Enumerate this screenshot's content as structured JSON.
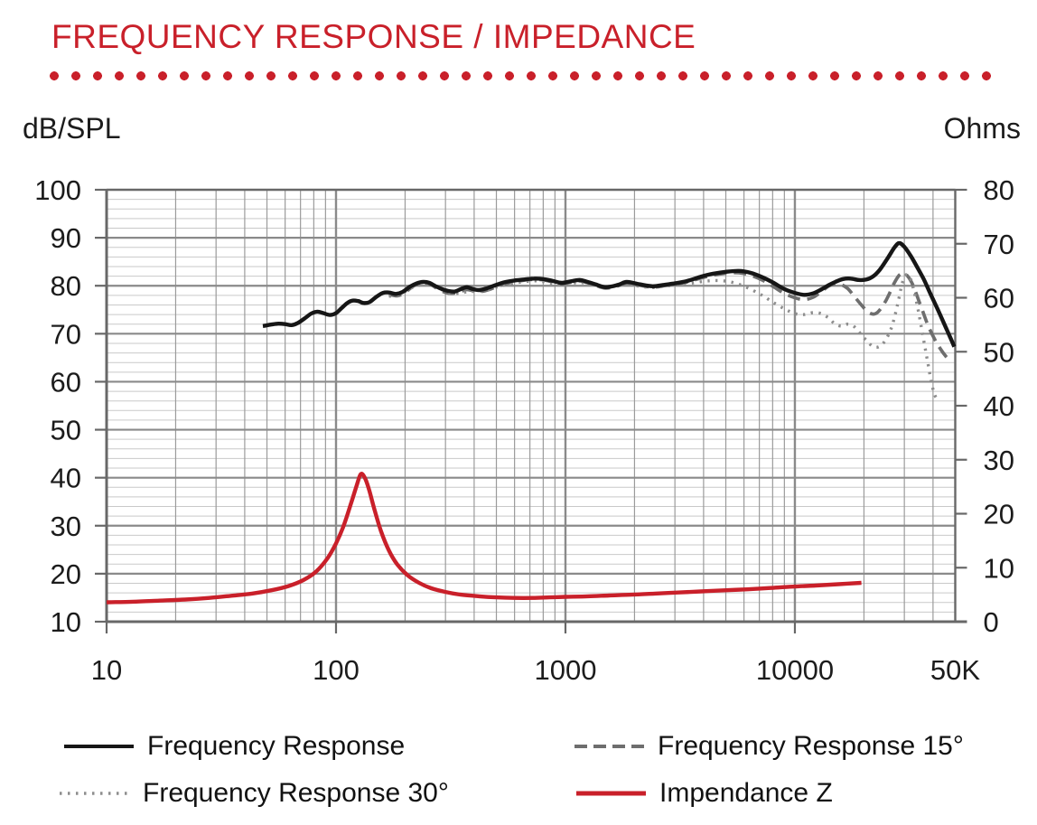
{
  "header": {
    "title": "FREQUENCY RESPONSE / IMPEDANCE"
  },
  "colors": {
    "accent_red": "#C9202A",
    "curve_black": "#161616",
    "curve_gray_dashed": "#6e6e6e",
    "curve_gray_dotted": "#8d8d8d",
    "grid_major": "#8a8a8a",
    "grid_minor": "#c9c9c9",
    "grid_minor_vertical": "#9b9b9b",
    "border": "#686868",
    "text": "#1c1c1c"
  },
  "chart_data": {
    "type": "line",
    "title": "FREQUENCY RESPONSE / IMPEDANCE",
    "grid": "on",
    "legend_position": "bottom",
    "x_axis": {
      "scale": "log",
      "min": 10,
      "max": 50000,
      "tick_values": [
        10,
        100,
        1000,
        10000,
        50000
      ],
      "tick_labels": [
        "10",
        "100",
        "1000",
        "10000",
        "50K"
      ]
    },
    "y_left": {
      "label": "dB/SPL",
      "min": 10,
      "max": 100,
      "step": 10,
      "minor_step": 2,
      "ticks": [
        100,
        90,
        80,
        70,
        60,
        50,
        40,
        30,
        20,
        10
      ]
    },
    "y_right": {
      "label": "Ohms",
      "min": 0,
      "max": 80,
      "step": 10,
      "ticks": [
        80,
        70,
        60,
        50,
        40,
        30,
        20,
        10,
        0
      ]
    },
    "series": [
      {
        "name": "Frequency Response",
        "axis": "left",
        "unit": "dB",
        "line_style": "solid",
        "color_key": "curve_black",
        "points": [
          [
            48,
            71.6
          ],
          [
            52,
            71.9
          ],
          [
            56,
            72.1
          ],
          [
            60,
            72.0
          ],
          [
            64,
            71.8
          ],
          [
            68,
            72.2
          ],
          [
            73,
            73.2
          ],
          [
            78,
            74.2
          ],
          [
            83,
            74.6
          ],
          [
            88,
            74.3
          ],
          [
            94,
            73.9
          ],
          [
            100,
            74.3
          ],
          [
            106,
            75.4
          ],
          [
            112,
            76.4
          ],
          [
            118,
            76.9
          ],
          [
            125,
            76.8
          ],
          [
            132,
            76.4
          ],
          [
            140,
            76.6
          ],
          [
            150,
            77.7
          ],
          [
            160,
            78.5
          ],
          [
            170,
            78.6
          ],
          [
            182,
            78.3
          ],
          [
            195,
            78.7
          ],
          [
            210,
            79.8
          ],
          [
            225,
            80.5
          ],
          [
            240,
            80.8
          ],
          [
            255,
            80.6
          ],
          [
            272,
            79.9
          ],
          [
            290,
            79.3
          ],
          [
            310,
            78.9
          ],
          [
            330,
            78.8
          ],
          [
            350,
            79.3
          ],
          [
            372,
            79.7
          ],
          [
            395,
            79.3
          ],
          [
            420,
            79.1
          ],
          [
            450,
            79.4
          ],
          [
            480,
            79.9
          ],
          [
            515,
            80.4
          ],
          [
            550,
            80.8
          ],
          [
            600,
            81.1
          ],
          [
            660,
            81.3
          ],
          [
            730,
            81.5
          ],
          [
            800,
            81.4
          ],
          [
            880,
            81.0
          ],
          [
            960,
            80.6
          ],
          [
            1050,
            80.9
          ],
          [
            1150,
            81.2
          ],
          [
            1250,
            80.8
          ],
          [
            1350,
            80.3
          ],
          [
            1500,
            79.7
          ],
          [
            1700,
            80.2
          ],
          [
            1850,
            80.8
          ],
          [
            2100,
            80.3
          ],
          [
            2400,
            79.9
          ],
          [
            2700,
            80.2
          ],
          [
            3000,
            80.5
          ],
          [
            3400,
            81.0
          ],
          [
            3900,
            81.9
          ],
          [
            4400,
            82.5
          ],
          [
            5000,
            82.9
          ],
          [
            5700,
            83.1
          ],
          [
            6400,
            82.7
          ],
          [
            7200,
            81.8
          ],
          [
            8000,
            80.7
          ],
          [
            9000,
            79.3
          ],
          [
            10000,
            78.5
          ],
          [
            11000,
            78.1
          ],
          [
            12000,
            78.4
          ],
          [
            13000,
            79.2
          ],
          [
            14000,
            80.1
          ],
          [
            15000,
            80.8
          ],
          [
            16200,
            81.4
          ],
          [
            17500,
            81.5
          ],
          [
            19000,
            81.2
          ],
          [
            20500,
            81.3
          ],
          [
            22000,
            82.0
          ],
          [
            23500,
            83.4
          ],
          [
            25500,
            85.9
          ],
          [
            27200,
            88.0
          ],
          [
            28500,
            88.9
          ],
          [
            30000,
            88.1
          ],
          [
            32000,
            86.2
          ],
          [
            34000,
            84.0
          ],
          [
            36500,
            81.3
          ],
          [
            39000,
            78.3
          ],
          [
            42000,
            75.0
          ],
          [
            45000,
            71.8
          ],
          [
            47500,
            69.3
          ],
          [
            49500,
            67.3
          ]
        ]
      },
      {
        "name": "Frequency Response 15°",
        "axis": "left",
        "unit": "dB",
        "line_style": "dashed",
        "color_key": "curve_gray_dashed",
        "points": [
          [
            170,
            78.2
          ],
          [
            185,
            77.9
          ],
          [
            200,
            78.6
          ],
          [
            215,
            79.8
          ],
          [
            230,
            80.4
          ],
          [
            245,
            80.6
          ],
          [
            262,
            80.1
          ],
          [
            280,
            79.2
          ],
          [
            300,
            78.6
          ],
          [
            320,
            78.4
          ],
          [
            345,
            78.7
          ],
          [
            372,
            79.2
          ],
          [
            400,
            78.9
          ],
          [
            430,
            78.8
          ],
          [
            465,
            79.2
          ],
          [
            500,
            79.8
          ],
          [
            540,
            80.3
          ],
          [
            590,
            80.8
          ],
          [
            650,
            81.1
          ],
          [
            720,
            81.3
          ],
          [
            800,
            81.2
          ],
          [
            880,
            80.8
          ],
          [
            960,
            80.4
          ],
          [
            1050,
            80.7
          ],
          [
            1150,
            81.0
          ],
          [
            1250,
            80.6
          ],
          [
            1350,
            80.1
          ],
          [
            1500,
            79.5
          ],
          [
            1700,
            80.0
          ],
          [
            1850,
            80.6
          ],
          [
            2100,
            80.1
          ],
          [
            2400,
            79.7
          ],
          [
            2700,
            80.0
          ],
          [
            3000,
            80.3
          ],
          [
            3400,
            80.8
          ],
          [
            3900,
            81.6
          ],
          [
            4400,
            82.2
          ],
          [
            5000,
            82.6
          ],
          [
            5700,
            82.7
          ],
          [
            6400,
            82.2
          ],
          [
            7200,
            81.2
          ],
          [
            8000,
            79.9
          ],
          [
            9000,
            78.4
          ],
          [
            10000,
            77.5
          ],
          [
            11000,
            77.1
          ],
          [
            12000,
            77.6
          ],
          [
            13000,
            78.7
          ],
          [
            14000,
            79.9
          ],
          [
            15000,
            80.4
          ],
          [
            16000,
            80.2
          ],
          [
            17000,
            79.4
          ],
          [
            18000,
            78.0
          ],
          [
            19500,
            76.0
          ],
          [
            21000,
            74.4
          ],
          [
            22500,
            74.2
          ],
          [
            24000,
            75.6
          ],
          [
            25500,
            77.8
          ],
          [
            27000,
            80.4
          ],
          [
            28500,
            82.2
          ],
          [
            29800,
            82.6
          ],
          [
            31000,
            82.0
          ],
          [
            32500,
            80.4
          ],
          [
            34000,
            78.0
          ],
          [
            36000,
            74.8
          ],
          [
            38000,
            71.8
          ],
          [
            40500,
            69.0
          ],
          [
            43000,
            66.9
          ],
          [
            45500,
            65.3
          ],
          [
            48000,
            64.2
          ]
        ]
      },
      {
        "name": "Frequency Response 30°",
        "axis": "left",
        "unit": "dB",
        "line_style": "dotted",
        "color_key": "curve_gray_dotted",
        "points": [
          [
            170,
            77.8
          ],
          [
            190,
            78.2
          ],
          [
            210,
            79.4
          ],
          [
            230,
            80.1
          ],
          [
            250,
            80.3
          ],
          [
            270,
            79.8
          ],
          [
            295,
            79.0
          ],
          [
            320,
            78.4
          ],
          [
            350,
            78.5
          ],
          [
            380,
            78.8
          ],
          [
            420,
            78.8
          ],
          [
            460,
            79.2
          ],
          [
            500,
            79.7
          ],
          [
            550,
            80.2
          ],
          [
            610,
            80.6
          ],
          [
            680,
            80.9
          ],
          [
            760,
            81.0
          ],
          [
            850,
            80.6
          ],
          [
            950,
            80.2
          ],
          [
            1050,
            80.4
          ],
          [
            1150,
            80.7
          ],
          [
            1280,
            80.3
          ],
          [
            1450,
            79.8
          ],
          [
            1650,
            79.9
          ],
          [
            1850,
            80.3
          ],
          [
            2100,
            79.9
          ],
          [
            2400,
            79.6
          ],
          [
            2700,
            79.9
          ],
          [
            3100,
            80.2
          ],
          [
            3500,
            80.5
          ],
          [
            4000,
            80.9
          ],
          [
            4500,
            81.1
          ],
          [
            5100,
            80.9
          ],
          [
            5700,
            80.3
          ],
          [
            6400,
            79.3
          ],
          [
            7200,
            78.0
          ],
          [
            8000,
            76.6
          ],
          [
            9000,
            75.2
          ],
          [
            10000,
            74.2
          ],
          [
            11000,
            74.0
          ],
          [
            12000,
            74.4
          ],
          [
            13000,
            74.2
          ],
          [
            14000,
            73.3
          ],
          [
            15000,
            72.0
          ],
          [
            16000,
            71.6
          ],
          [
            17000,
            72.0
          ],
          [
            18000,
            71.6
          ],
          [
            19000,
            70.4
          ],
          [
            20500,
            68.6
          ],
          [
            22000,
            67.3
          ],
          [
            23500,
            67.4
          ],
          [
            25000,
            68.9
          ],
          [
            26500,
            71.6
          ],
          [
            28000,
            76.0
          ],
          [
            29300,
            80.3
          ],
          [
            30500,
            82.3
          ],
          [
            31800,
            81.6
          ],
          [
            33000,
            79.0
          ],
          [
            34500,
            74.8
          ],
          [
            36000,
            70.0
          ],
          [
            37800,
            64.5
          ],
          [
            39500,
            59.5
          ],
          [
            41000,
            56.9
          ],
          [
            42500,
            56.2
          ]
        ]
      },
      {
        "name": "Impendance Z",
        "axis": "right",
        "unit": "Ohms",
        "line_style": "solid",
        "color_key": "accent_red",
        "points": [
          [
            10,
            3.6
          ],
          [
            13,
            3.7
          ],
          [
            17,
            3.9
          ],
          [
            22,
            4.1
          ],
          [
            28,
            4.4
          ],
          [
            35,
            4.8
          ],
          [
            43,
            5.2
          ],
          [
            52,
            5.8
          ],
          [
            62,
            6.6
          ],
          [
            72,
            7.7
          ],
          [
            82,
            9.3
          ],
          [
            92,
            11.8
          ],
          [
            100,
            14.5
          ],
          [
            108,
            17.8
          ],
          [
            116,
            21.8
          ],
          [
            123,
            25.2
          ],
          [
            128,
            27.3
          ],
          [
            133,
            26.8
          ],
          [
            139,
            24.6
          ],
          [
            147,
            20.8
          ],
          [
            157,
            16.8
          ],
          [
            170,
            13.2
          ],
          [
            185,
            10.6
          ],
          [
            205,
            8.6
          ],
          [
            230,
            7.2
          ],
          [
            260,
            6.2
          ],
          [
            300,
            5.5
          ],
          [
            350,
            5.0
          ],
          [
            420,
            4.7
          ],
          [
            500,
            4.5
          ],
          [
            600,
            4.4
          ],
          [
            720,
            4.4
          ],
          [
            850,
            4.5
          ],
          [
            1000,
            4.6
          ],
          [
            1250,
            4.7
          ],
          [
            1550,
            4.85
          ],
          [
            1950,
            5.0
          ],
          [
            2450,
            5.2
          ],
          [
            3100,
            5.4
          ],
          [
            3900,
            5.6
          ],
          [
            4900,
            5.8
          ],
          [
            6200,
            6.0
          ],
          [
            7800,
            6.25
          ],
          [
            9800,
            6.5
          ],
          [
            12300,
            6.7
          ],
          [
            15500,
            6.95
          ],
          [
            19500,
            7.2
          ]
        ]
      }
    ]
  }
}
